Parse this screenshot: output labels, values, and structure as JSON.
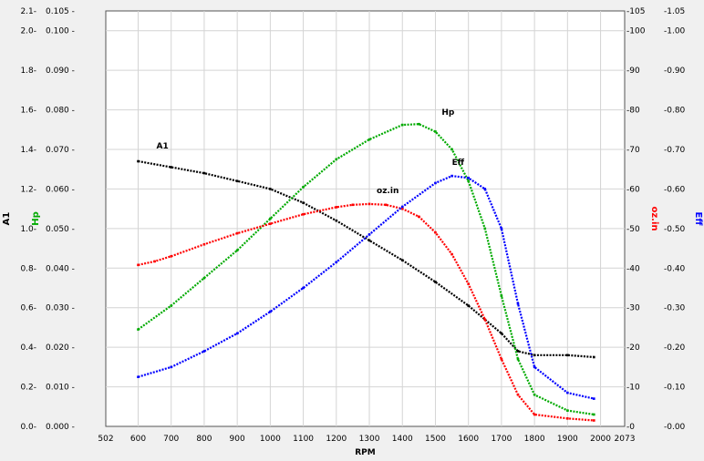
{
  "chart_data": {
    "type": "line",
    "xlabel": "RPM",
    "x_ticks": [
      "502",
      "600",
      "700",
      "800",
      "900",
      "1000",
      "1100",
      "1200",
      "1300",
      "1400",
      "1500",
      "1600",
      "1700",
      "1800",
      "1900",
      "2000",
      "2073"
    ],
    "xlim": [
      502,
      2073
    ],
    "grid": true,
    "axes": {
      "a1": {
        "label": "A1",
        "range": [
          0,
          2.1
        ],
        "ticks": [
          "0.0",
          "0.2",
          "0.4",
          "0.6",
          "0.8",
          "1.0",
          "1.2",
          "1.4",
          "1.6",
          "1.8",
          "2.0",
          "2.1"
        ],
        "color": "#000000",
        "side": "left-outer"
      },
      "hp": {
        "label": "Hp",
        "range": [
          0,
          0.105
        ],
        "ticks": [
          "0.000",
          "0.010",
          "0.020",
          "0.030",
          "0.040",
          "0.050",
          "0.060",
          "0.070",
          "0.080",
          "0.090",
          "0.100",
          "0.105"
        ],
        "color": "#00aa00",
        "side": "left-inner"
      },
      "ozin": {
        "label": "oz.in",
        "range": [
          0,
          105
        ],
        "ticks": [
          "0",
          "10",
          "20",
          "30",
          "40",
          "50",
          "60",
          "70",
          "80",
          "90",
          "100",
          "105"
        ],
        "color": "#ff0000",
        "side": "right-inner"
      },
      "eff": {
        "label": "Eff",
        "range": [
          0,
          1.05
        ],
        "ticks": [
          "0.00",
          "0.10",
          "0.20",
          "0.30",
          "0.40",
          "0.50",
          "0.60",
          "0.70",
          "0.80",
          "0.90",
          "1.00",
          "1.05"
        ],
        "color": "#0000ff",
        "side": "right-outer",
        "tick_prefix": "-"
      }
    },
    "series": [
      {
        "name": "A1",
        "axis": "a1",
        "color": "#000000",
        "x": [
          600,
          700,
          800,
          900,
          1000,
          1100,
          1200,
          1300,
          1400,
          1500,
          1600,
          1700,
          1750,
          1800,
          1900,
          1980
        ],
        "y": [
          1.34,
          1.31,
          1.28,
          1.24,
          1.2,
          1.13,
          1.04,
          0.94,
          0.84,
          0.73,
          0.61,
          0.47,
          0.38,
          0.36,
          0.36,
          0.35
        ]
      },
      {
        "name": "Hp",
        "axis": "hp",
        "color": "#00aa00",
        "x": [
          600,
          700,
          800,
          900,
          1000,
          1100,
          1200,
          1300,
          1400,
          1450,
          1500,
          1550,
          1600,
          1650,
          1700,
          1750,
          1800,
          1900,
          1980
        ],
        "y": [
          0.0245,
          0.0305,
          0.0375,
          0.0445,
          0.0525,
          0.0605,
          0.0675,
          0.0725,
          0.0762,
          0.0764,
          0.0745,
          0.07,
          0.062,
          0.05,
          0.033,
          0.017,
          0.008,
          0.004,
          0.003
        ]
      },
      {
        "name": "oz.in",
        "axis": "ozin",
        "color": "#ff0000",
        "x": [
          600,
          650,
          700,
          800,
          900,
          1000,
          1100,
          1200,
          1250,
          1300,
          1350,
          1400,
          1450,
          1500,
          1550,
          1600,
          1650,
          1700,
          1750,
          1800,
          1900,
          1980
        ],
        "y": [
          40.8,
          41.7,
          43.0,
          46.0,
          48.8,
          51.2,
          53.6,
          55.4,
          56.0,
          56.2,
          56.0,
          55.0,
          53.0,
          49.0,
          43.5,
          36.0,
          27.0,
          17.0,
          8.0,
          3.0,
          2.0,
          1.5
        ]
      },
      {
        "name": "Eff",
        "axis": "eff",
        "color": "#0000ff",
        "x": [
          600,
          700,
          800,
          900,
          1000,
          1100,
          1200,
          1300,
          1400,
          1500,
          1550,
          1600,
          1650,
          1700,
          1750,
          1800,
          1900,
          1980
        ],
        "y": [
          0.125,
          0.15,
          0.19,
          0.235,
          0.29,
          0.35,
          0.415,
          0.485,
          0.555,
          0.615,
          0.633,
          0.628,
          0.6,
          0.5,
          0.31,
          0.15,
          0.085,
          0.07
        ]
      }
    ],
    "annotations": [
      {
        "text": "A1",
        "series": "A1"
      },
      {
        "text": "Hp",
        "series": "Hp"
      },
      {
        "text": "oz.in",
        "series": "oz.in"
      },
      {
        "text": "Eff",
        "series": "Eff"
      }
    ]
  }
}
